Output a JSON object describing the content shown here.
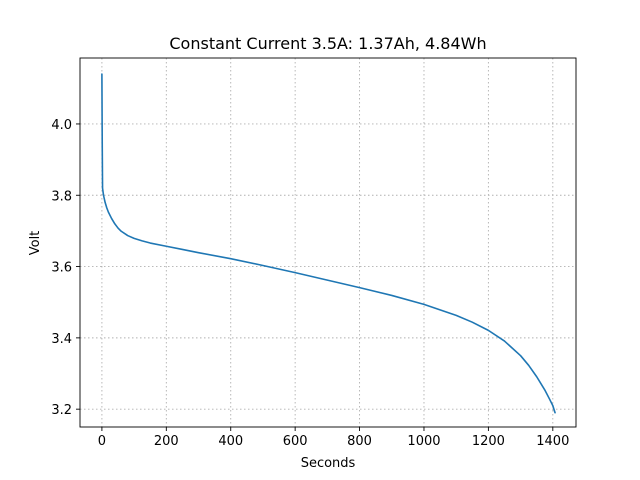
{
  "chart_data": {
    "type": "line",
    "title": "Constant Current 3.5A: 1.37Ah, 4.84Wh",
    "xlabel": "Seconds",
    "ylabel": "Volt",
    "xlim": [
      -68,
      1472
    ],
    "ylim": [
      3.15,
      4.185
    ],
    "xticks": [
      0,
      200,
      400,
      600,
      800,
      1000,
      1200,
      1400
    ],
    "xtick_labels": [
      "0",
      "200",
      "400",
      "600",
      "800",
      "1000",
      "1200",
      "1400"
    ],
    "yticks": [
      3.2,
      3.4,
      3.6,
      3.8,
      4.0
    ],
    "ytick_labels": [
      "3.2",
      "3.4",
      "3.6",
      "3.8",
      "4.0"
    ],
    "grid": true,
    "grid_style": "dotted",
    "series": [
      {
        "color": "#1f77b4",
        "x": [
          0,
          1,
          2,
          5,
          10,
          15,
          20,
          30,
          40,
          50,
          60,
          80,
          100,
          125,
          150,
          200,
          250,
          300,
          400,
          500,
          600,
          700,
          800,
          900,
          1000,
          1100,
          1150,
          1200,
          1250,
          1300,
          1325,
          1350,
          1375,
          1390,
          1400,
          1407
        ],
        "y": [
          4.14,
          3.95,
          3.82,
          3.8,
          3.78,
          3.765,
          3.753,
          3.735,
          3.72,
          3.708,
          3.699,
          3.687,
          3.679,
          3.672,
          3.666,
          3.657,
          3.648,
          3.639,
          3.622,
          3.603,
          3.583,
          3.562,
          3.541,
          3.519,
          3.494,
          3.463,
          3.444,
          3.421,
          3.391,
          3.35,
          3.323,
          3.291,
          3.254,
          3.228,
          3.21,
          3.19
        ]
      }
    ]
  }
}
